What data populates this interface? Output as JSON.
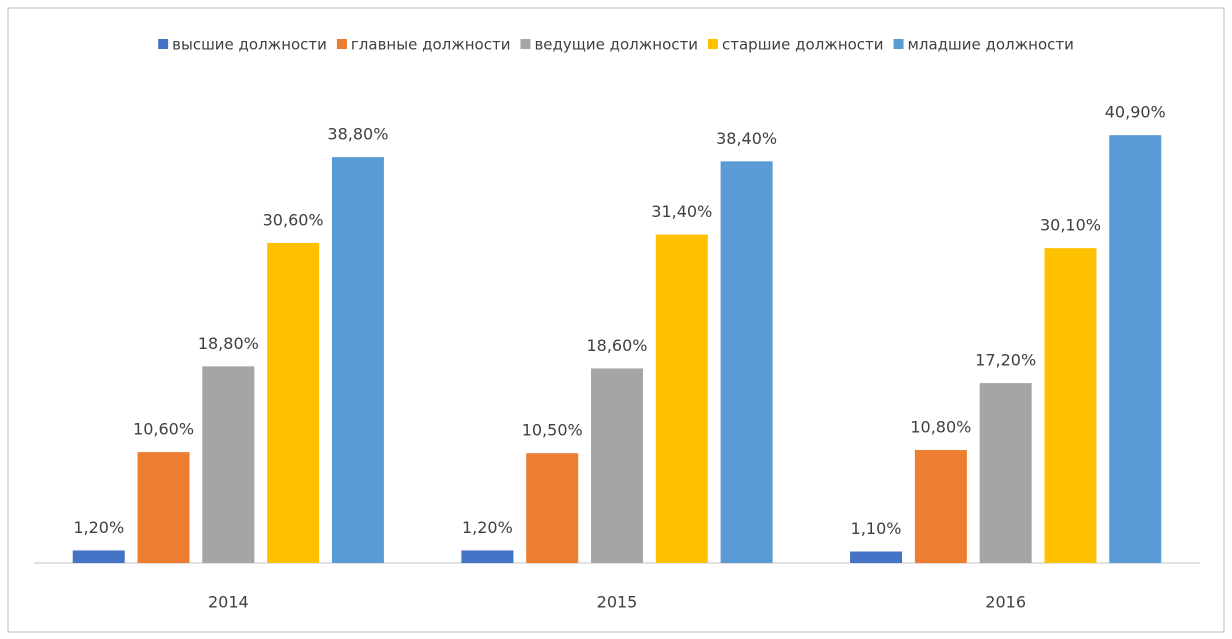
{
  "chart_data": {
    "type": "bar",
    "categories": [
      "2014",
      "2015",
      "2016"
    ],
    "series": [
      {
        "name": "высшие должности",
        "color": "#4472c4",
        "values": [
          1.2,
          1.2,
          1.1
        ],
        "value_labels": [
          "1,20%",
          "1,20%",
          "1,10%"
        ]
      },
      {
        "name": "главные должности",
        "color": "#ed7d31",
        "values": [
          10.6,
          10.5,
          10.8
        ],
        "value_labels": [
          "10,60%",
          "10,50%",
          "10,80%"
        ]
      },
      {
        "name": "ведущие должности",
        "color": "#a5a5a5",
        "values": [
          18.8,
          18.6,
          17.2
        ],
        "value_labels": [
          "18,80%",
          "18,60%",
          "17,20%"
        ]
      },
      {
        "name": "старшие должности",
        "color": "#ffc000",
        "values": [
          30.6,
          31.4,
          30.1
        ],
        "value_labels": [
          "30,60%",
          "31,40%",
          "30,10%"
        ]
      },
      {
        "name": "младшие должности",
        "color": "#5b9bd5",
        "values": [
          38.8,
          38.4,
          40.9
        ],
        "value_labels": [
          "38,80%",
          "38,40%",
          "40,90%"
        ]
      }
    ],
    "legend": "top"
  }
}
